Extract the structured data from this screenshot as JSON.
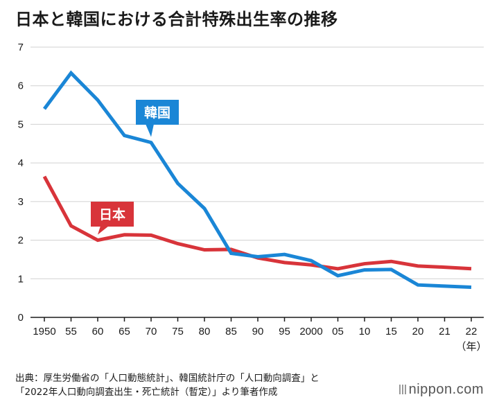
{
  "title": "日本と韓国における合計特殊出生率の推移",
  "source_lines": [
    "出典：厚生労働省の「人口動態統計」、韓国統計庁の「人口動向調査」と",
    "「2022年人口動向調査出生・死亡統計（暫定）」より筆者作成"
  ],
  "logo_text": "nippon.com",
  "chart_data": {
    "type": "line",
    "title": "日本と韓国における合計特殊出生率の推移",
    "categories": [
      "1950",
      "55",
      "60",
      "65",
      "70",
      "75",
      "80",
      "85",
      "90",
      "95",
      "2000",
      "05",
      "10",
      "15",
      "20",
      "21",
      "22"
    ],
    "xlabel": "（年）",
    "ylabel": "",
    "ylim": [
      0,
      7
    ],
    "yticks": [
      0,
      1,
      2,
      3,
      4,
      5,
      6,
      7
    ],
    "grid": true,
    "series": [
      {
        "name": "韓国",
        "color": "#1a86d6",
        "values": [
          5.4,
          6.33,
          5.63,
          4.71,
          4.53,
          3.47,
          2.82,
          1.66,
          1.57,
          1.63,
          1.47,
          1.08,
          1.23,
          1.24,
          0.84,
          0.81,
          0.78
        ]
      },
      {
        "name": "日本",
        "color": "#d8343a",
        "values": [
          3.65,
          2.37,
          2.0,
          2.14,
          2.13,
          1.91,
          1.75,
          1.76,
          1.54,
          1.42,
          1.36,
          1.26,
          1.39,
          1.45,
          1.33,
          1.3,
          1.26
        ]
      }
    ]
  }
}
